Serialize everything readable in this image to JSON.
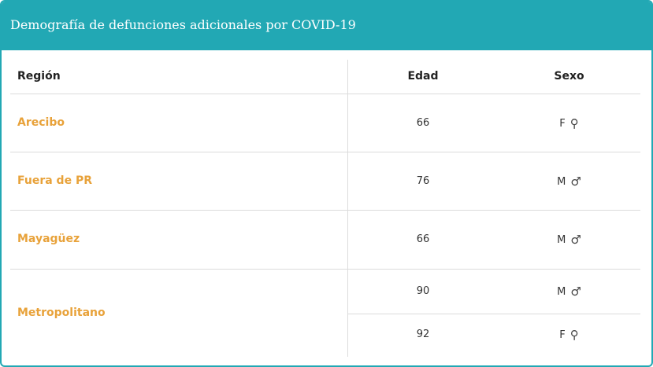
{
  "header": {
    "title": "Demografía de defunciones adicionales por COVID-19",
    "color": "#22a8b4"
  },
  "table": {
    "columns": [
      "Región",
      "Edad",
      "Sexo"
    ],
    "region_color": "#e8a23a",
    "rows": [
      {
        "region": "Arecibo",
        "entries": [
          {
            "edad": "66",
            "sexo": "F",
            "sexo_icon": "female-icon"
          }
        ]
      },
      {
        "region": "Fuera de PR",
        "entries": [
          {
            "edad": "76",
            "sexo": "M",
            "sexo_icon": "male-icon"
          }
        ]
      },
      {
        "region": "Mayagüez",
        "entries": [
          {
            "edad": "66",
            "sexo": "M",
            "sexo_icon": "male-icon"
          }
        ]
      },
      {
        "region": "Metropolitano",
        "entries": [
          {
            "edad": "90",
            "sexo": "M",
            "sexo_icon": "male-icon"
          },
          {
            "edad": "92",
            "sexo": "F",
            "sexo_icon": "female-icon"
          }
        ]
      }
    ]
  }
}
